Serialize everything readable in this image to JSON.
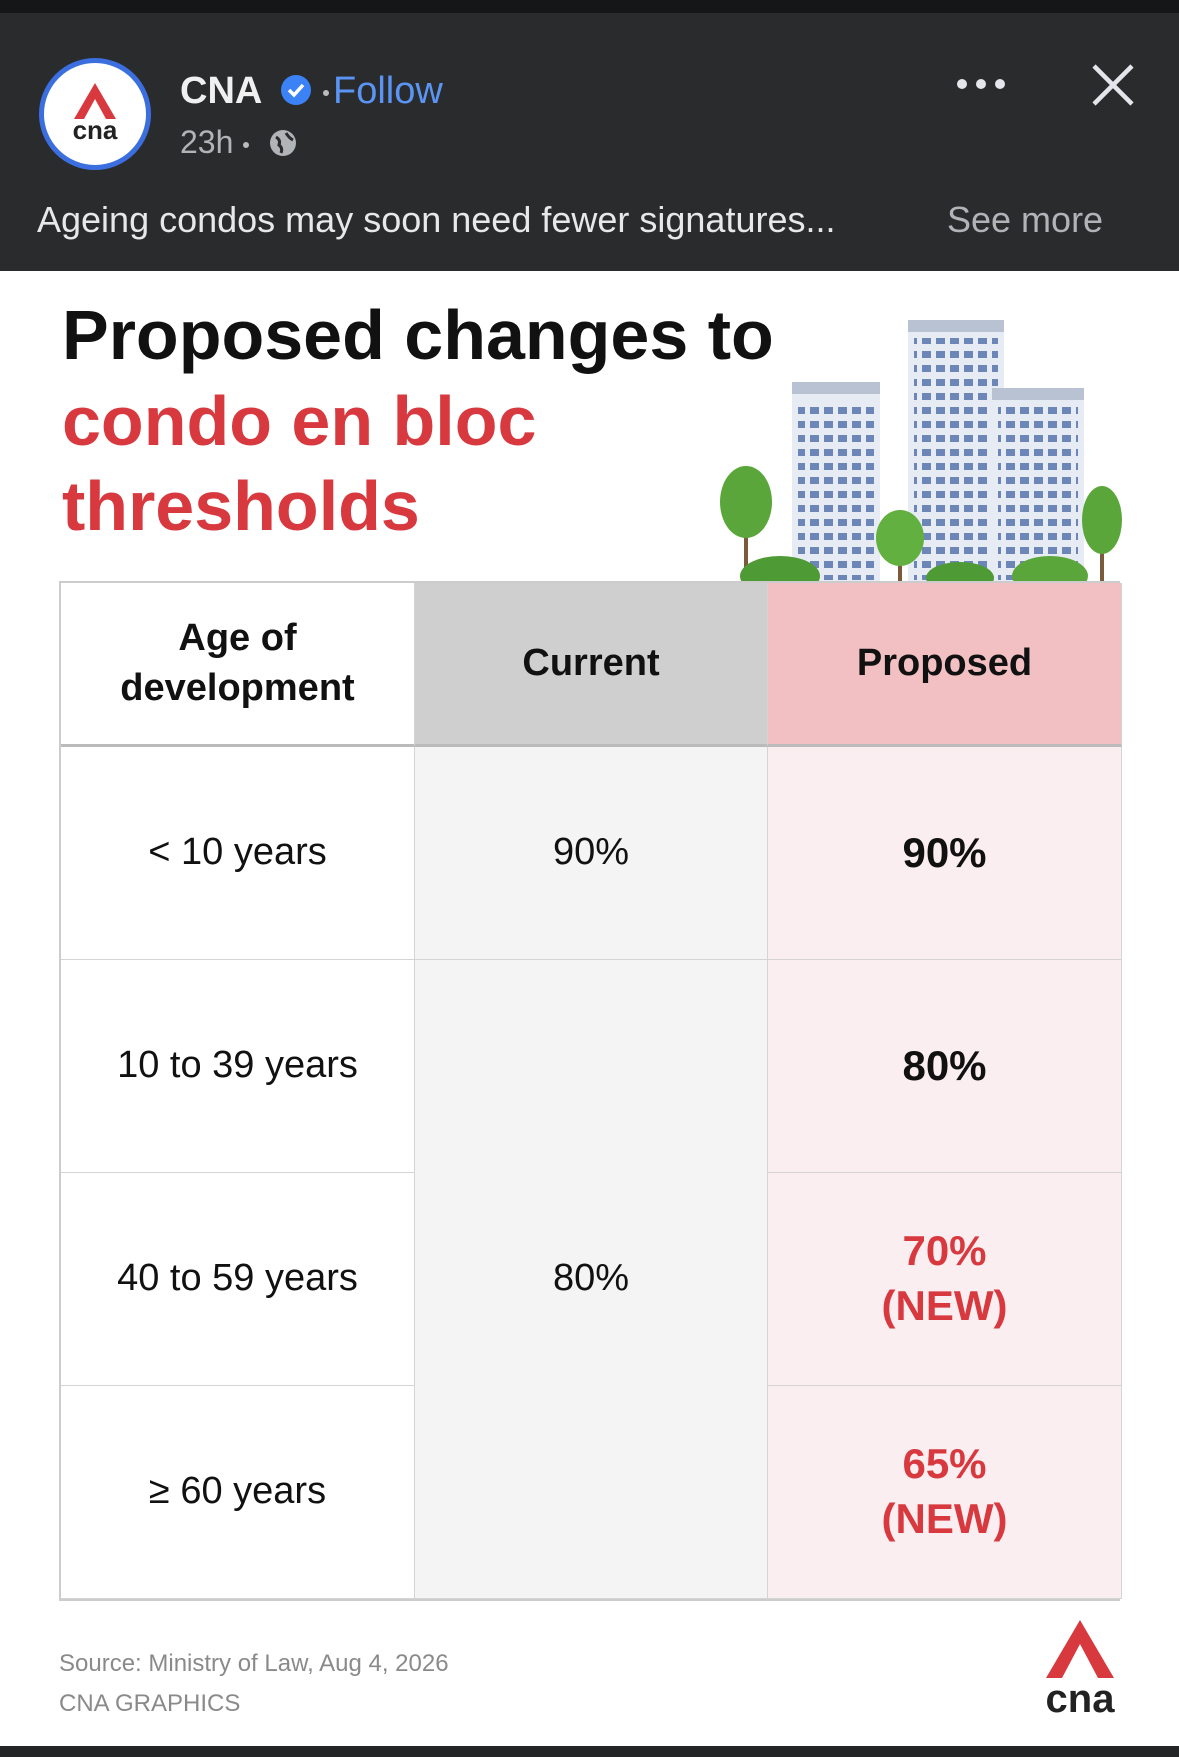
{
  "post": {
    "author": "CNA",
    "follow": "Follow",
    "time": "23h",
    "caption": "Ageing condos may soon need fewer signatures...",
    "see_more": "See more",
    "logo_text": "cna"
  },
  "infographic": {
    "title": [
      "Proposed changes to",
      "condo en bloc",
      "thresholds"
    ],
    "source": "Source: Ministry of Law, Aug 4, 2026",
    "credit": "CNA GRAPHICS"
  },
  "table": {
    "headers": [
      "Age of development",
      "Current",
      "Proposed"
    ],
    "age": [
      "< 10 years",
      "10 to 39 years",
      "40 to 59 years",
      "≥ 60 years"
    ],
    "current": [
      "90%",
      "80%"
    ],
    "proposed": [
      {
        "text": "90%"
      },
      {
        "text": "80%"
      },
      {
        "text": "70%",
        "note": "(NEW)"
      },
      {
        "text": "65%",
        "note": "(NEW)"
      }
    ]
  }
}
